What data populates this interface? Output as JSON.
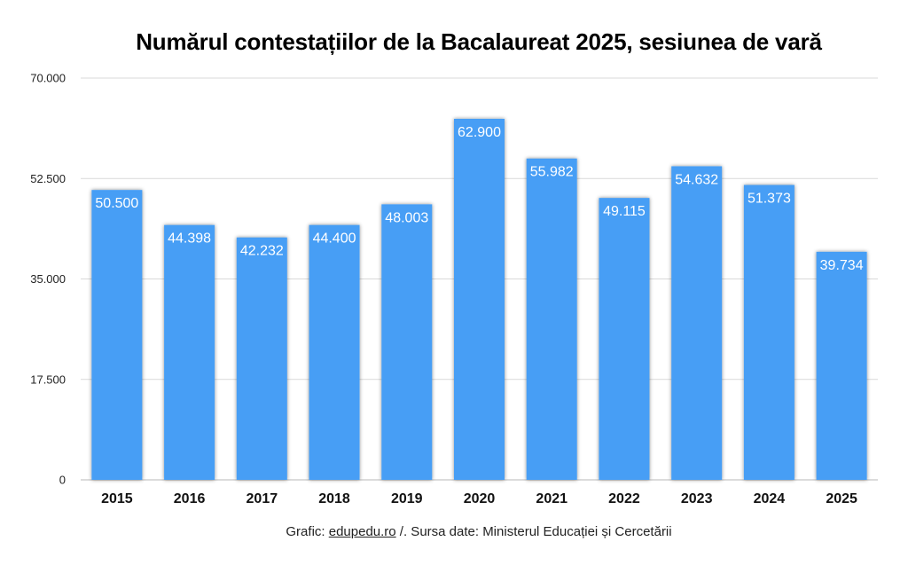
{
  "chart_data": {
    "type": "bar",
    "title": "Numărul contestațiilor de la Bacalaureat 2025, sesiunea de vară",
    "xlabel": "",
    "ylabel": "",
    "categories": [
      "2015",
      "2016",
      "2017",
      "2018",
      "2019",
      "2020",
      "2021",
      "2022",
      "2023",
      "2024",
      "2025"
    ],
    "values": [
      50500,
      44398,
      42232,
      44400,
      48003,
      62900,
      55982,
      49115,
      54632,
      51373,
      39734
    ],
    "value_labels": [
      "50.500",
      "44.398",
      "42.232",
      "44.400",
      "48.003",
      "62.900",
      "55.982",
      "49.115",
      "54.632",
      "51.373",
      "39.734"
    ],
    "ylim": [
      0,
      70000
    ],
    "yticks": [
      0,
      17500,
      35000,
      52500,
      70000
    ],
    "ytick_labels": [
      "0",
      "17.500",
      "35.000",
      "52.500",
      "70.000"
    ],
    "grid": true,
    "legend": "none",
    "bar_color": "#469ef5"
  },
  "footer": {
    "prefix": "Grafic: ",
    "link_text": "edupedu.ro",
    "suffix": " /. Sursa date: Ministerul Educației și Cercetării"
  }
}
